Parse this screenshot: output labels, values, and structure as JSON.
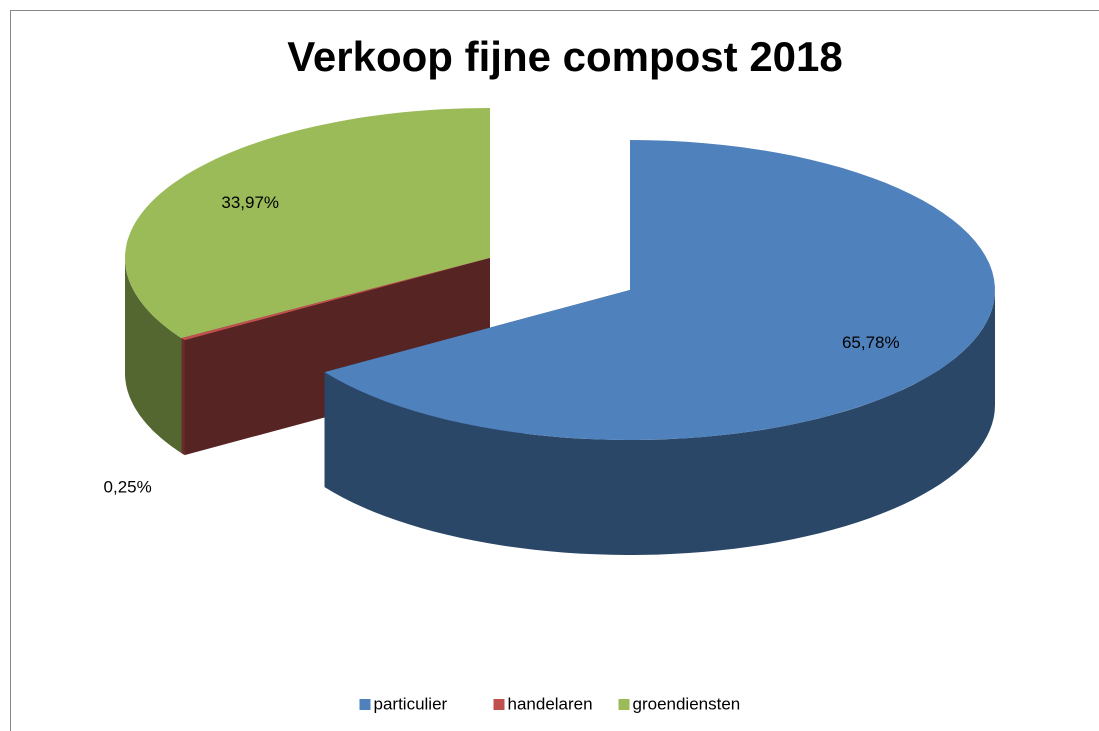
{
  "chart_data": {
    "type": "pie3d",
    "title": "Verkoop fijne compost 2018",
    "categories": [
      "particulier",
      "handelaren",
      "groendiensten"
    ],
    "values": [
      65.78,
      0.25,
      33.97
    ],
    "value_labels": [
      "65,78%",
      "0,25%",
      "33,97%"
    ],
    "colors": [
      "#4f81bd",
      "#c0504d",
      "#9bbb59"
    ],
    "legend": "bottom"
  }
}
